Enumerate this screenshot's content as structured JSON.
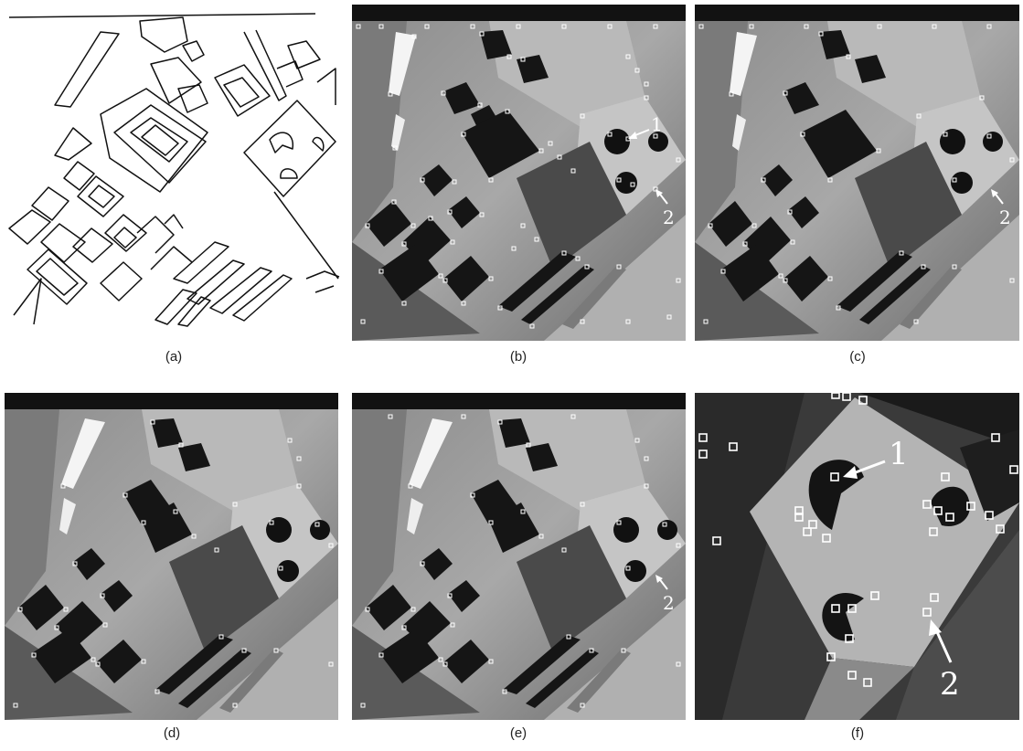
{
  "figure": {
    "panels": [
      {
        "caption": "(a)",
        "kind": "edge-map"
      },
      {
        "caption": "(b)",
        "kind": "corner-detection",
        "labels": [
          "1",
          "2"
        ]
      },
      {
        "caption": "(c)",
        "kind": "corner-detection",
        "labels": [
          "2"
        ]
      },
      {
        "caption": "(d)",
        "kind": "corner-detection",
        "labels": []
      },
      {
        "caption": "(e)",
        "kind": "corner-detection",
        "labels": [
          "2"
        ]
      },
      {
        "caption": "(f)",
        "kind": "zoomed-corner-detection",
        "labels": [
          "1",
          "2"
        ]
      }
    ],
    "colors": {
      "background": "#ffffff",
      "edge": "#111111",
      "marker": "#ffffff",
      "dark": "#151515"
    }
  }
}
